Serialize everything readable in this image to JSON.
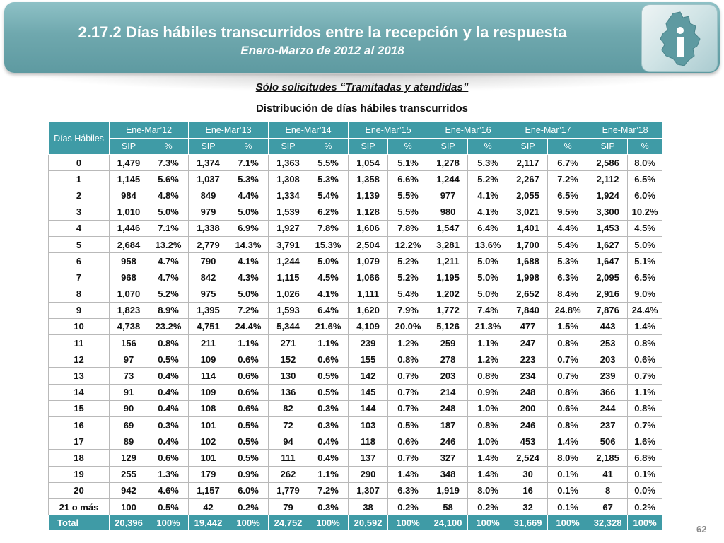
{
  "header": {
    "title": "2.17.2 Días hábiles transcurridos entre la recepción y la respuesta",
    "subtitle": "Enero-Marzo de 2012 al 2018",
    "logo": "cdmx-map-info-icon"
  },
  "heading_filter": "Sólo solicitudes “Tramitadas y atendidas”",
  "heading_table": "Distribución de días hábiles transcurridos",
  "table": {
    "corner_label": "Días Hábiles",
    "periods": [
      "Ene-Mar’12",
      "Ene-Mar’13",
      "Ene-Mar’14",
      "Ene-Mar’15",
      "Ene-Mar’16",
      "Ene-Mar’17",
      "Ene-Mar’18"
    ],
    "sub_headers": [
      "SIP",
      "%"
    ],
    "rows": [
      [
        "0",
        "1,479",
        "7.3%",
        "1,374",
        "7.1%",
        "1,363",
        "5.5%",
        "1,054",
        "5.1%",
        "1,278",
        "5.3%",
        "2,117",
        "6.7%",
        "2,586",
        "8.0%"
      ],
      [
        "1",
        "1,145",
        "5.6%",
        "1,037",
        "5.3%",
        "1,308",
        "5.3%",
        "1,358",
        "6.6%",
        "1,244",
        "5.2%",
        "2,267",
        "7.2%",
        "2,112",
        "6.5%"
      ],
      [
        "2",
        "984",
        "4.8%",
        "849",
        "4.4%",
        "1,334",
        "5.4%",
        "1,139",
        "5.5%",
        "977",
        "4.1%",
        "2,055",
        "6.5%",
        "1,924",
        "6.0%"
      ],
      [
        "3",
        "1,010",
        "5.0%",
        "979",
        "5.0%",
        "1,539",
        "6.2%",
        "1,128",
        "5.5%",
        "980",
        "4.1%",
        "3,021",
        "9.5%",
        "3,300",
        "10.2%"
      ],
      [
        "4",
        "1,446",
        "7.1%",
        "1,338",
        "6.9%",
        "1,927",
        "7.8%",
        "1,606",
        "7.8%",
        "1,547",
        "6.4%",
        "1,401",
        "4.4%",
        "1,453",
        "4.5%"
      ],
      [
        "5",
        "2,684",
        "13.2%",
        "2,779",
        "14.3%",
        "3,791",
        "15.3%",
        "2,504",
        "12.2%",
        "3,281",
        "13.6%",
        "1,700",
        "5.4%",
        "1,627",
        "5.0%"
      ],
      [
        "6",
        "958",
        "4.7%",
        "790",
        "4.1%",
        "1,244",
        "5.0%",
        "1,079",
        "5.2%",
        "1,211",
        "5.0%",
        "1,688",
        "5.3%",
        "1,647",
        "5.1%"
      ],
      [
        "7",
        "968",
        "4.7%",
        "842",
        "4.3%",
        "1,115",
        "4.5%",
        "1,066",
        "5.2%",
        "1,195",
        "5.0%",
        "1,998",
        "6.3%",
        "2,095",
        "6.5%"
      ],
      [
        "8",
        "1,070",
        "5.2%",
        "975",
        "5.0%",
        "1,026",
        "4.1%",
        "1,111",
        "5.4%",
        "1,202",
        "5.0%",
        "2,652",
        "8.4%",
        "2,916",
        "9.0%"
      ],
      [
        "9",
        "1,823",
        "8.9%",
        "1,395",
        "7.2%",
        "1,593",
        "6.4%",
        "1,620",
        "7.9%",
        "1,772",
        "7.4%",
        "7,840",
        "24.8%",
        "7,876",
        "24.4%"
      ],
      [
        "10",
        "4,738",
        "23.2%",
        "4,751",
        "24.4%",
        "5,344",
        "21.6%",
        "4,109",
        "20.0%",
        "5,126",
        "21.3%",
        "477",
        "1.5%",
        "443",
        "1.4%"
      ],
      [
        "11",
        "156",
        "0.8%",
        "211",
        "1.1%",
        "271",
        "1.1%",
        "239",
        "1.2%",
        "259",
        "1.1%",
        "247",
        "0.8%",
        "253",
        "0.8%"
      ],
      [
        "12",
        "97",
        "0.5%",
        "109",
        "0.6%",
        "152",
        "0.6%",
        "155",
        "0.8%",
        "278",
        "1.2%",
        "223",
        "0.7%",
        "203",
        "0.6%"
      ],
      [
        "13",
        "73",
        "0.4%",
        "114",
        "0.6%",
        "130",
        "0.5%",
        "142",
        "0.7%",
        "203",
        "0.8%",
        "234",
        "0.7%",
        "239",
        "0.7%"
      ],
      [
        "14",
        "91",
        "0.4%",
        "109",
        "0.6%",
        "136",
        "0.5%",
        "145",
        "0.7%",
        "214",
        "0.9%",
        "248",
        "0.8%",
        "366",
        "1.1%"
      ],
      [
        "15",
        "90",
        "0.4%",
        "108",
        "0.6%",
        "82",
        "0.3%",
        "144",
        "0.7%",
        "248",
        "1.0%",
        "200",
        "0.6%",
        "244",
        "0.8%"
      ],
      [
        "16",
        "69",
        "0.3%",
        "101",
        "0.5%",
        "72",
        "0.3%",
        "103",
        "0.5%",
        "187",
        "0.8%",
        "246",
        "0.8%",
        "237",
        "0.7%"
      ],
      [
        "17",
        "89",
        "0.4%",
        "102",
        "0.5%",
        "94",
        "0.4%",
        "118",
        "0.6%",
        "246",
        "1.0%",
        "453",
        "1.4%",
        "506",
        "1.6%"
      ],
      [
        "18",
        "129",
        "0.6%",
        "101",
        "0.5%",
        "111",
        "0.4%",
        "137",
        "0.7%",
        "327",
        "1.4%",
        "2,524",
        "8.0%",
        "2,185",
        "6.8%"
      ],
      [
        "19",
        "255",
        "1.3%",
        "179",
        "0.9%",
        "262",
        "1.1%",
        "290",
        "1.4%",
        "348",
        "1.4%",
        "30",
        "0.1%",
        "41",
        "0.1%"
      ],
      [
        "20",
        "942",
        "4.6%",
        "1,157",
        "6.0%",
        "1,779",
        "7.2%",
        "1,307",
        "6.3%",
        "1,919",
        "8.0%",
        "16",
        "0.1%",
        "8",
        "0.0%"
      ],
      [
        "21 o más",
        "100",
        "0.5%",
        "42",
        "0.2%",
        "79",
        "0.3%",
        "38",
        "0.2%",
        "58",
        "0.2%",
        "32",
        "0.1%",
        "67",
        "0.2%"
      ]
    ],
    "total": [
      "Total",
      "20,396",
      "100%",
      "19,442",
      "100%",
      "24,752",
      "100%",
      "20,592",
      "100%",
      "24,100",
      "100%",
      "31,669",
      "100%",
      "32,328",
      "100%"
    ]
  },
  "page_number": "62",
  "colors": {
    "banner": "#6fa8ae",
    "table_header": "#3f9ba6",
    "logo_fill": "#5e9aa1"
  }
}
